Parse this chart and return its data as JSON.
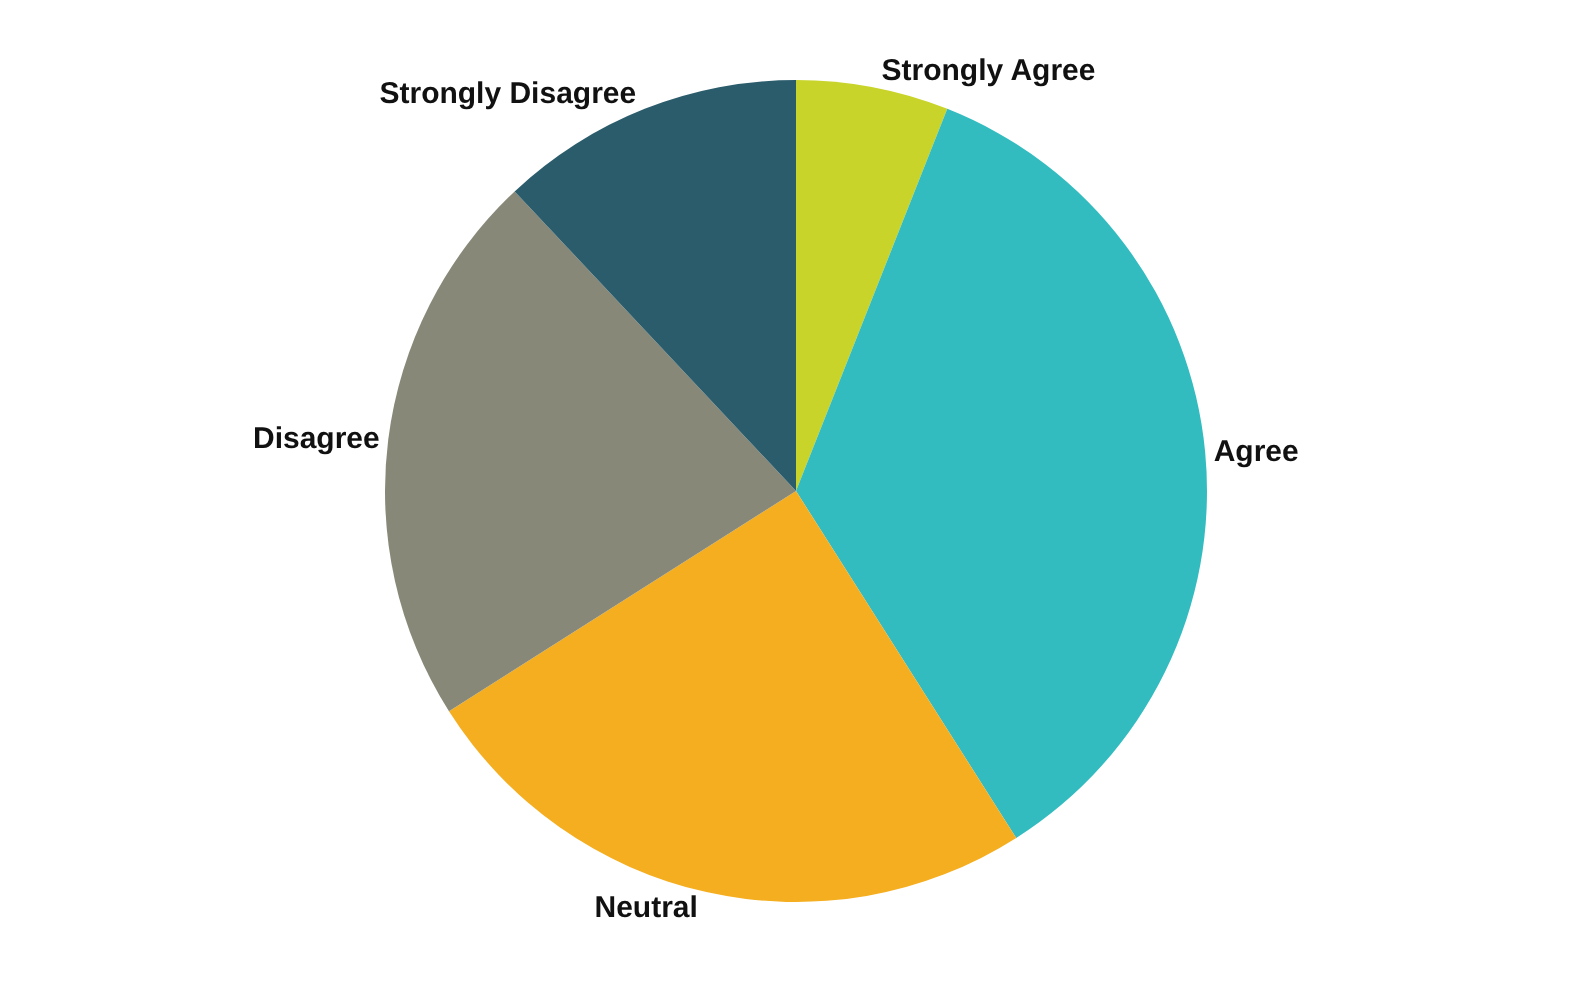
{
  "chart_data": {
    "type": "pie",
    "legend": false,
    "categories": [
      "Strongly Agree",
      "Agree",
      "Neutral",
      "Disagree",
      "Strongly Disagree"
    ],
    "values": [
      6,
      35,
      25,
      22,
      12
    ],
    "colors": [
      "#c8d42a",
      "#33bcc0",
      "#f4ae1f",
      "#878878",
      "#2b5c6b"
    ]
  }
}
